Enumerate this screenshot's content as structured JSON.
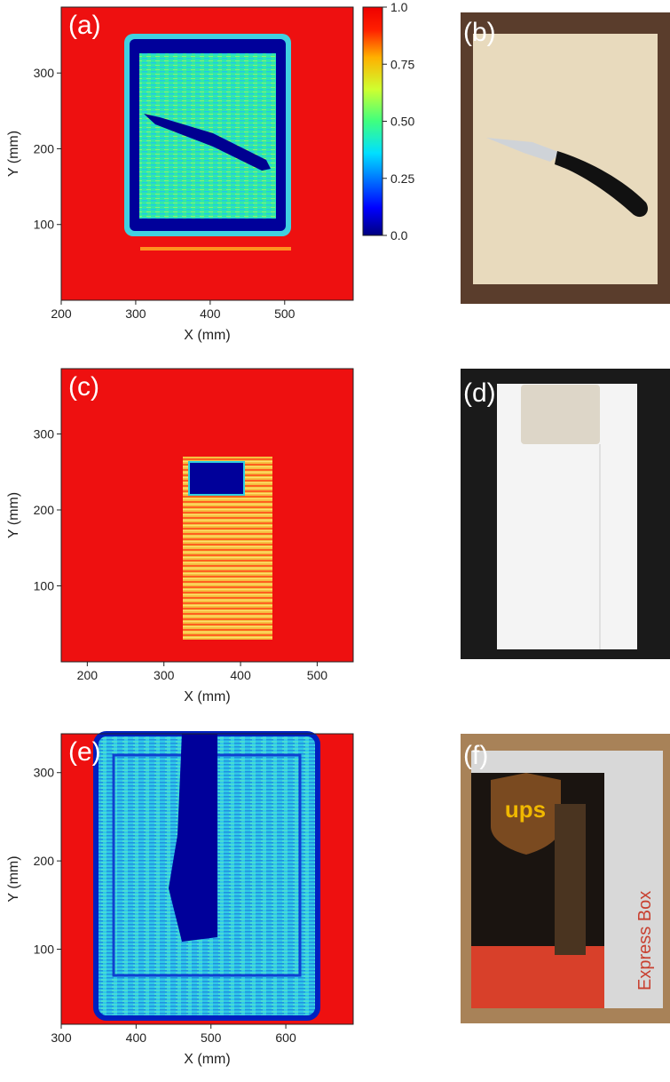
{
  "chart_data": [
    {
      "type": "heatmap",
      "panel_label": "(a)",
      "xlabel": "X (mm)",
      "ylabel": "Y (mm)",
      "xlim": [
        200,
        592
      ],
      "ylim": [
        0,
        387
      ],
      "xticks": [
        200,
        300,
        400,
        500
      ],
      "yticks": [
        100,
        200,
        300
      ],
      "colorbar": {
        "clim": [
          0,
          1
        ],
        "ticks": [
          {
            "value": 1,
            "label": "1.0"
          },
          0.75,
          {
            "value": 0.5,
            "label": "0.50"
          },
          0.25,
          {
            "value": 0,
            "label": "0.0"
          }
        ]
      }
    },
    {
      "type": "heatmap",
      "panel_label": "(c)",
      "xlabel": "X (mm)",
      "ylabel": "Y (mm)",
      "xlim": [
        166,
        547
      ],
      "ylim": [
        0,
        386
      ],
      "xticks": [
        200,
        300,
        400,
        500
      ],
      "yticks": [
        100,
        200,
        300
      ]
    },
    {
      "type": "heatmap",
      "panel_label": "(e)",
      "xlabel": "X (mm)",
      "ylabel": "Y (mm)",
      "xlim": [
        300,
        690
      ],
      "ylim": [
        15,
        344
      ],
      "xticks": [
        300,
        400,
        500,
        600
      ],
      "yticks": [
        100,
        200,
        300
      ]
    }
  ],
  "photos": [
    {
      "label": "(b)"
    },
    {
      "label": "(d)"
    },
    {
      "label": "(f)",
      "logo": "ups",
      "box_text": "Express Box"
    }
  ]
}
